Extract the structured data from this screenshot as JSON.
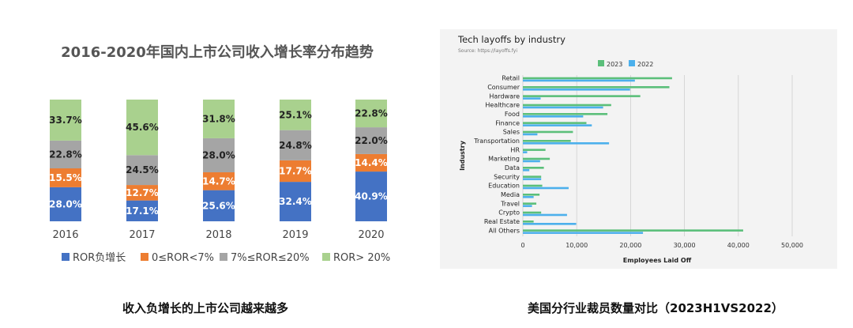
{
  "colors": {
    "ror_negative": "#4472c4",
    "ror_0_7": "#ed7d31",
    "ror_7_20": "#a5a5a5",
    "ror_20_plus": "#a9d18e",
    "series_2023": "#5bbf7a",
    "series_2022": "#4cb0ec"
  },
  "captions": {
    "left": "收入负增长的上市公司越来越多",
    "right": "美国分行业裁员数量对比（2023H1VS2022）"
  },
  "chart_data": [
    {
      "type": "bar",
      "stacked": true,
      "percent": true,
      "title": "2016-2020年国内上市公司收入增长率分布趋势",
      "categories": [
        "2016",
        "2017",
        "2018",
        "2019",
        "2020"
      ],
      "series": [
        {
          "name": "ROR负增长",
          "values": [
            28.0,
            17.1,
            25.6,
            32.4,
            40.9
          ],
          "labels": [
            "28.0%",
            "17.1%",
            "25.6%",
            "32.4%",
            "40.9%"
          ]
        },
        {
          "name": "0≤ROR<7%",
          "values": [
            15.5,
            12.7,
            14.7,
            17.7,
            14.4
          ],
          "labels": [
            "15.5%",
            "12.7%",
            "14.7%",
            "17.7%",
            "14.4%"
          ]
        },
        {
          "name": "7%≤ROR≤20%",
          "values": [
            22.8,
            24.5,
            28.0,
            24.8,
            22.0
          ],
          "labels": [
            "22.8%",
            "24.5%",
            "28.0%",
            "24.8%",
            "22.0%"
          ]
        },
        {
          "name": "ROR> 20%",
          "values": [
            33.7,
            45.6,
            31.8,
            25.1,
            22.8
          ],
          "labels": [
            "33.7%",
            "45.6%",
            "31.8%",
            "25.1%",
            "22.8%"
          ]
        }
      ],
      "legend": "bottom",
      "grid": false
    },
    {
      "type": "bar",
      "orientation": "horizontal",
      "title": "Tech layoffs by industry",
      "subtitle": "Source: https://layoffs.fyi",
      "xlabel": "Employees Laid Off",
      "ylabel": "Industry",
      "xlim": [
        0,
        50000
      ],
      "xticks": [
        "0",
        "10,000",
        "20,000",
        "30,000",
        "40,000",
        "50,000"
      ],
      "categories": [
        "Retail",
        "Consumer",
        "Hardware",
        "Healthcare",
        "Food",
        "Finance",
        "Sales",
        "Transportation",
        "HR",
        "Marketing",
        "Data",
        "Security",
        "Education",
        "Media",
        "Travel",
        "Crypto",
        "Real Estate",
        "All Others"
      ],
      "series": [
        {
          "name": "2023",
          "values": [
            27700,
            27200,
            21800,
            16400,
            15700,
            11800,
            9300,
            8900,
            4200,
            5000,
            3900,
            3400,
            3600,
            3100,
            2500,
            3400,
            2000,
            40900
          ]
        },
        {
          "name": "2022",
          "values": [
            20800,
            19900,
            3300,
            14900,
            11200,
            12800,
            2700,
            16000,
            800,
            3200,
            1200,
            3400,
            8500,
            2000,
            1700,
            8200,
            9900,
            22300
          ]
        }
      ],
      "legend": "top",
      "grid": true
    }
  ]
}
